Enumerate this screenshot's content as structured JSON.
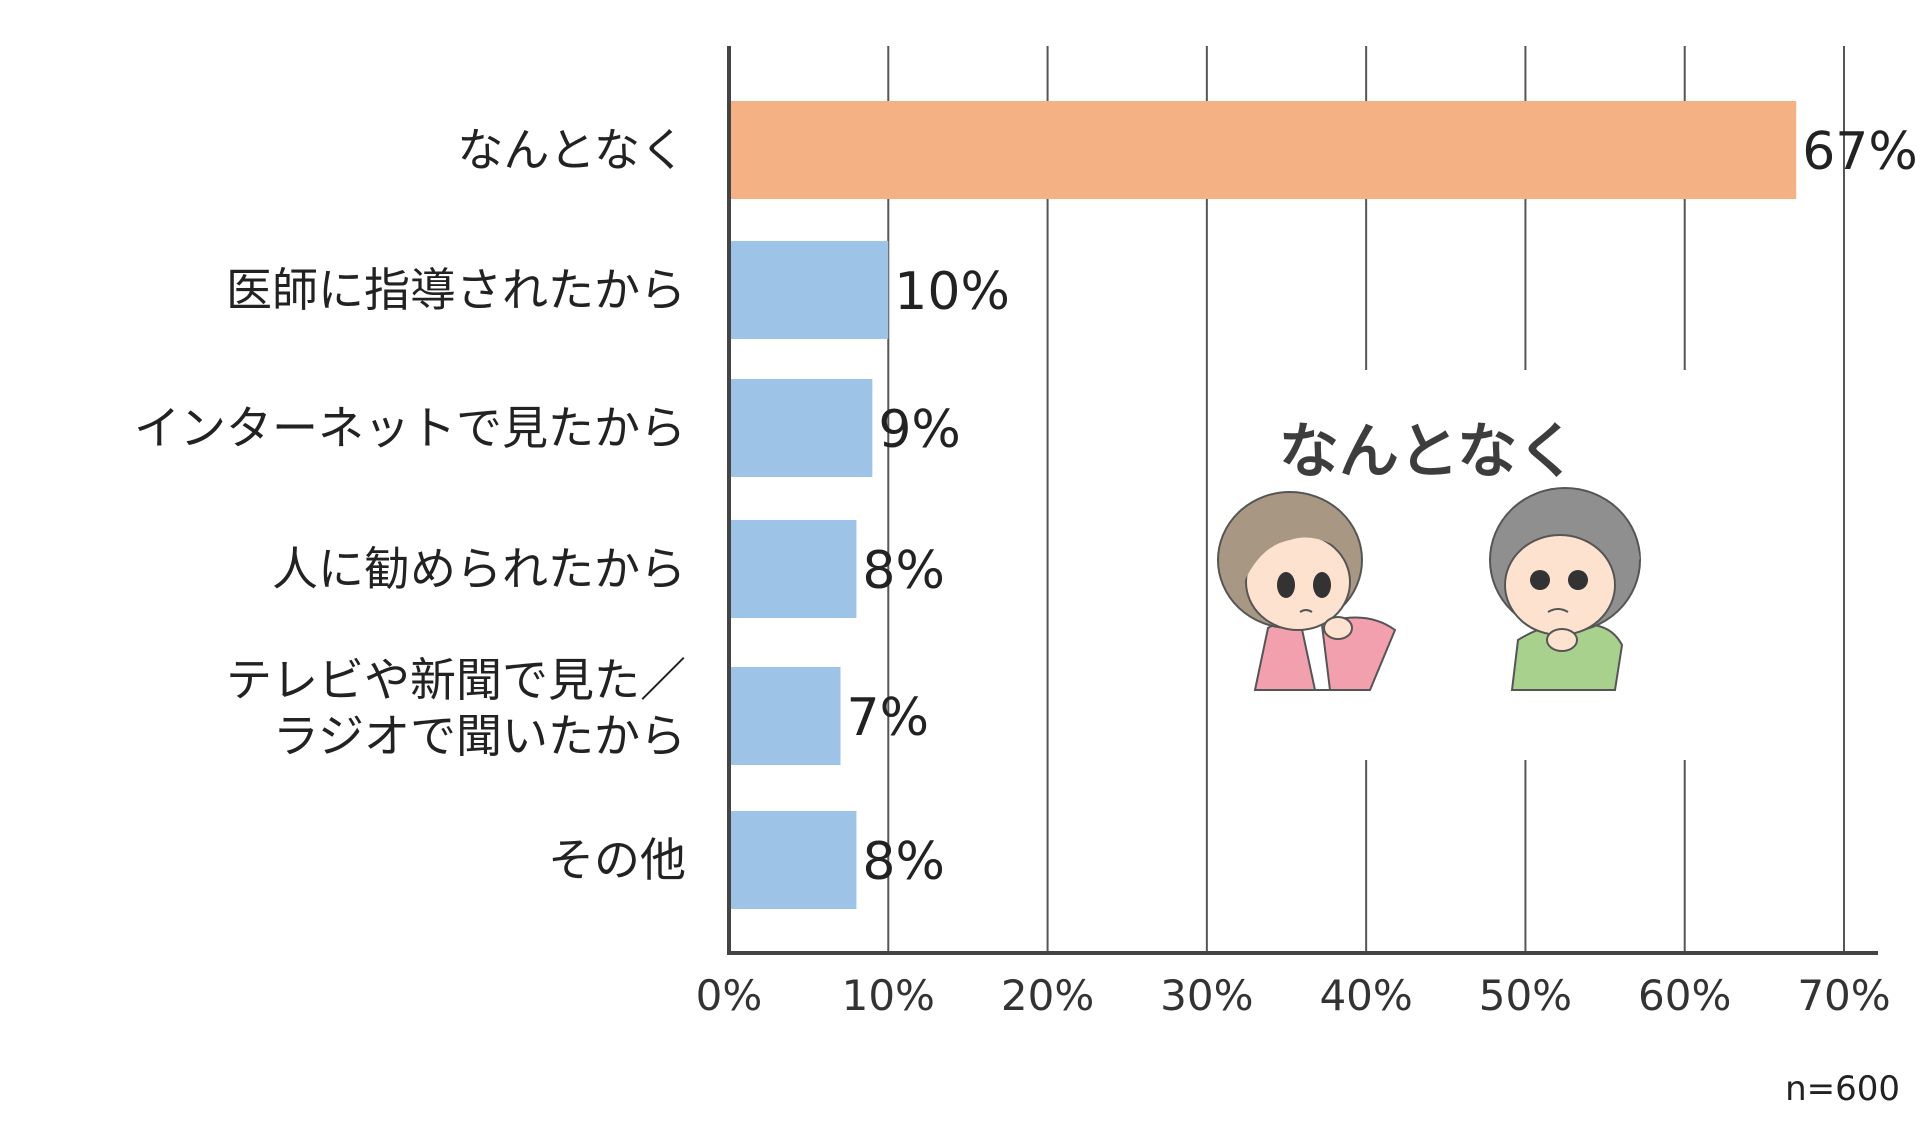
{
  "chart_data": {
    "type": "bar",
    "orientation": "horizontal",
    "categories": [
      "なんとなく",
      "医師に指導されたから",
      "インターネットで見たから",
      "人に勧められたから",
      "テレビや新聞で見た／ラジオで聞いたから",
      "その他"
    ],
    "category_lines": [
      [
        "なんとなく"
      ],
      [
        "医師に指導されたから"
      ],
      [
        "インターネットで見たから"
      ],
      [
        "人に勧められたから"
      ],
      [
        "テレビや新聞で見た／",
        "ラジオで聞いたから"
      ],
      [
        "その他"
      ]
    ],
    "values": [
      67,
      10,
      9,
      8,
      7,
      8
    ],
    "value_labels": [
      "67%",
      "10%",
      "9%",
      "8%",
      "7%",
      "8%"
    ],
    "xlim": [
      0,
      70
    ],
    "ticks": [
      0,
      10,
      20,
      30,
      40,
      50,
      60,
      70
    ],
    "tick_labels": [
      "0%",
      "10%",
      "20%",
      "30%",
      "40%",
      "50%",
      "60%",
      "70%"
    ],
    "grid": true,
    "annotation": "なんとなく",
    "sample_note": "n=600",
    "colors": {
      "highlight": "#f4b183",
      "default": "#9dc3e6"
    },
    "highlight_index": 0
  },
  "illustration": {
    "left_figure": "woman-thinking-figure",
    "right_figure": "man-thinking-figure"
  }
}
